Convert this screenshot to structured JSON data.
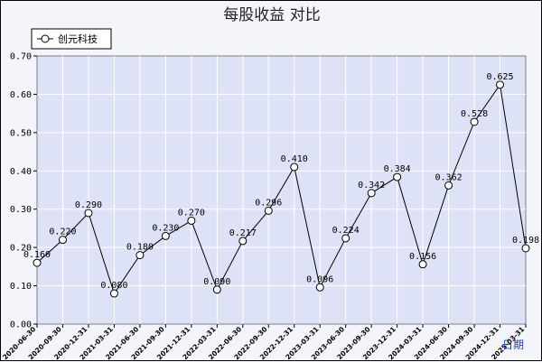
{
  "chart_data": {
    "type": "line",
    "title": "每股收益  对比",
    "xlabel": "日期",
    "ylabel": "",
    "ylim": [
      0,
      0.7
    ],
    "yticks": [
      "0.00",
      "0.10",
      "0.20",
      "0.30",
      "0.40",
      "0.50",
      "0.60",
      "0.70"
    ],
    "grid": true,
    "legend": "top-left",
    "categories": [
      "2020-06-30",
      "2020-09-30",
      "2020-12-31",
      "2021-03-31",
      "2021-06-30",
      "2021-09-30",
      "2021-12-31",
      "2022-03-31",
      "2022-06-30",
      "2022-09-30",
      "2022-12-31",
      "2023-03-31",
      "2023-06-30",
      "2023-09-30",
      "2023-12-31",
      "2024-03-31",
      "2024-06-30",
      "2024-09-30",
      "2024-12-31",
      "2025-03-31"
    ],
    "series": [
      {
        "name": "创元科技",
        "values": [
          0.16,
          0.22,
          0.29,
          0.08,
          0.18,
          0.23,
          0.27,
          0.09,
          0.217,
          0.296,
          0.41,
          0.096,
          0.224,
          0.342,
          0.384,
          0.156,
          0.362,
          0.528,
          0.625,
          0.198
        ],
        "labels": [
          "0.160",
          "0.220",
          "0.290",
          "0.080",
          "0.180",
          "0.230",
          "0.270",
          "0.090",
          "0.217",
          "0.296",
          "0.410",
          "0.096",
          "0.224",
          "0.342",
          "0.384",
          "0.156",
          "0.362",
          "0.528",
          "0.625",
          "0.198"
        ]
      }
    ],
    "colors": {
      "plot_bg": "#dde2f6",
      "grid": "#ffffff",
      "line": "#000000",
      "xaxis_label": "#1e3fa8"
    }
  }
}
